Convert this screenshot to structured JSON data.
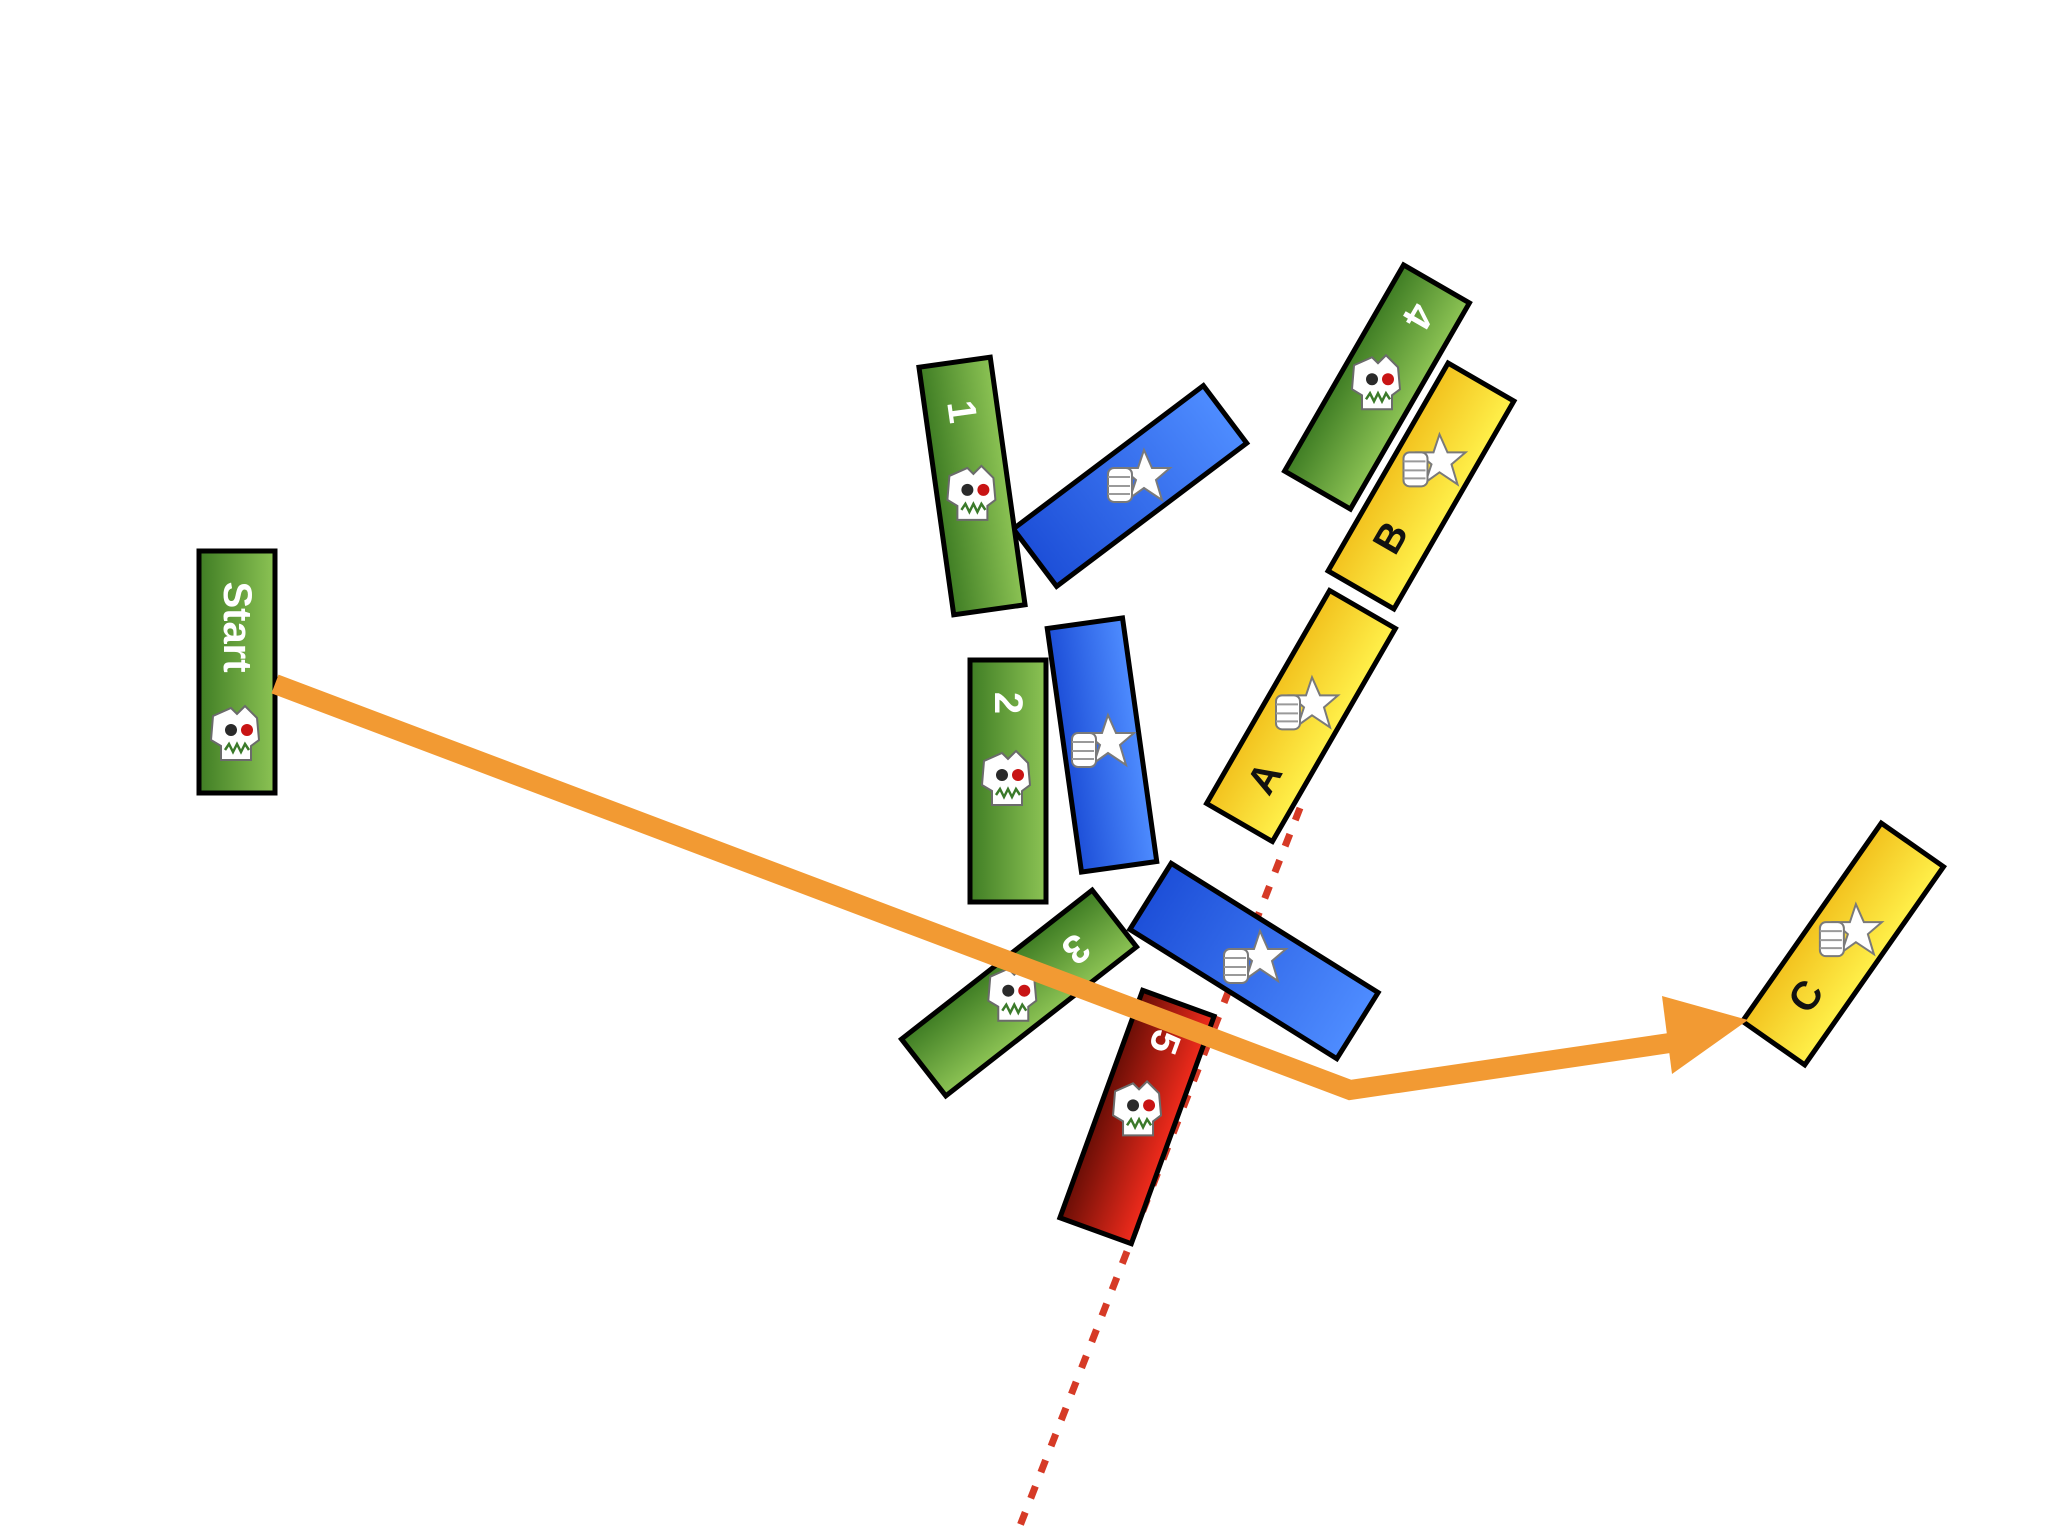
{
  "colors": {
    "green": [
      "#3f7d24",
      "#8cc354"
    ],
    "blue": [
      "#1d4fd8",
      "#4e8cff"
    ],
    "yellow": [
      "#f2c21e",
      "#fff04a"
    ],
    "red": [
      "#6a0e06",
      "#f02b1c"
    ],
    "arrow": "#f29a33",
    "dotted_line": "#d63a26",
    "stroke": "#000000"
  },
  "units": {
    "start": {
      "label": "Start",
      "icon": "orc-skull-icon"
    },
    "u1": {
      "label": "1",
      "icon": "orc-skull-icon"
    },
    "u2": {
      "label": "2",
      "icon": "orc-skull-icon"
    },
    "u3": {
      "label": "3",
      "icon": "orc-skull-icon"
    },
    "u4": {
      "label": "4",
      "icon": "orc-skull-icon"
    },
    "u5": {
      "label": "5",
      "icon": "orc-skull-icon"
    },
    "ua": {
      "label": "A",
      "icon": "star-fist-icon"
    },
    "ub": {
      "label": "B",
      "icon": "star-fist-icon"
    },
    "uc": {
      "label": "C",
      "icon": "star-fist-icon"
    },
    "blue1": {
      "label": "",
      "icon": "star-fist-icon"
    },
    "blue2": {
      "label": "",
      "icon": "star-fist-icon"
    },
    "blue3": {
      "label": "",
      "icon": "star-fist-icon"
    }
  }
}
